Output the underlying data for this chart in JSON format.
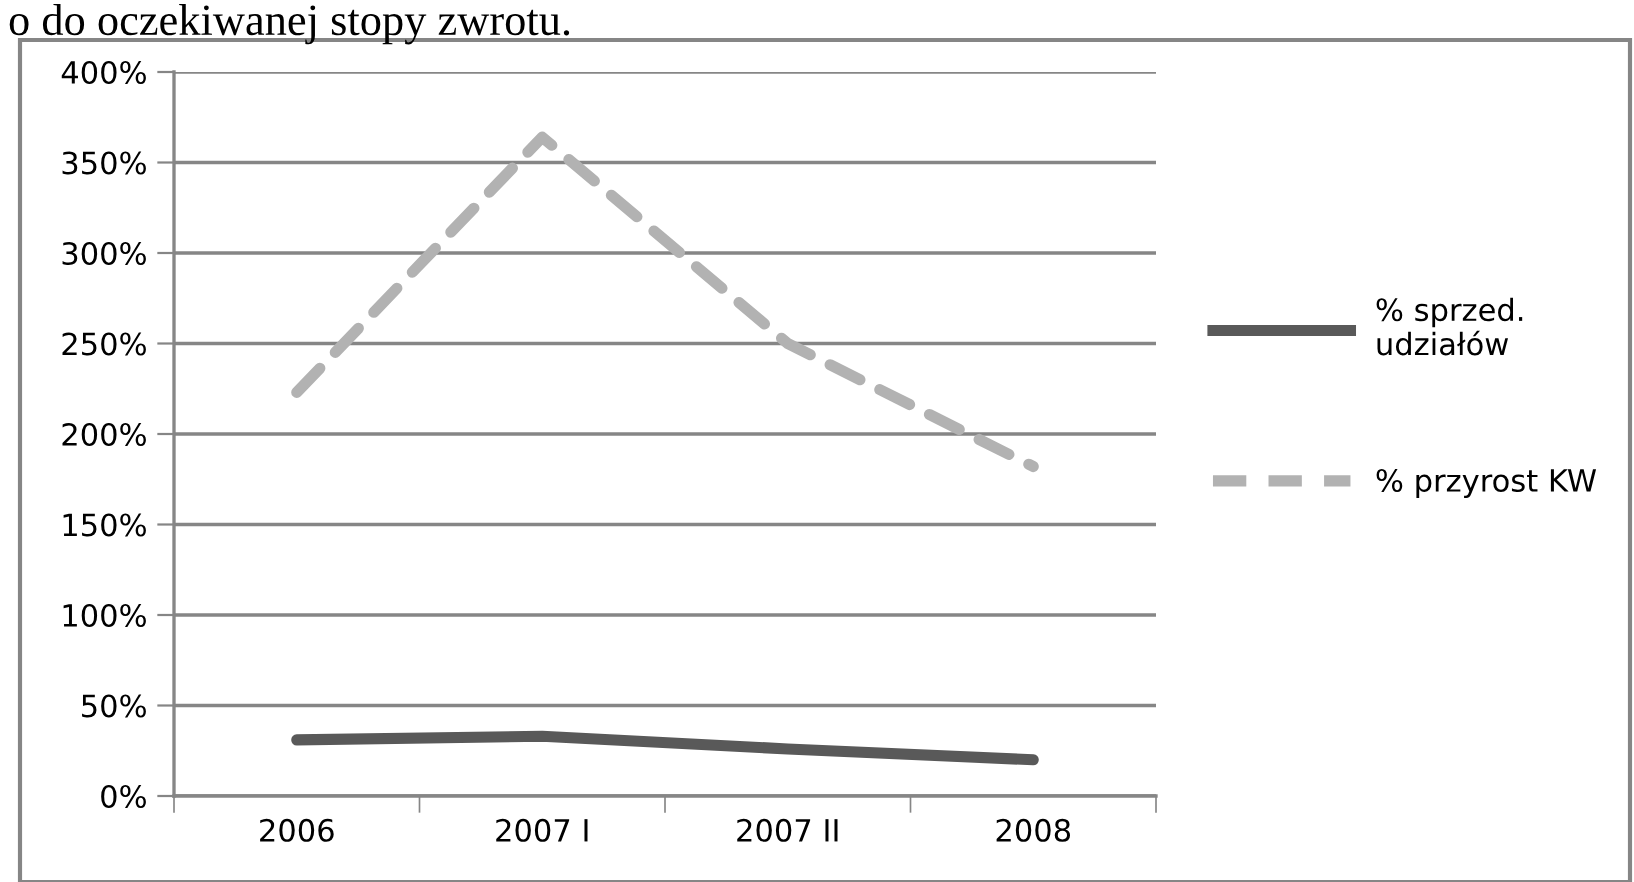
{
  "chart_data": {
    "type": "line",
    "categories": [
      "2006",
      "2007 I",
      "2007 II",
      "2008"
    ],
    "series": [
      {
        "name": "% sprzed. udziałów",
        "color": "#595959",
        "values": [
          31,
          33,
          26,
          20
        ],
        "line_style": "solid"
      },
      {
        "name": "% przyrost KW",
        "color": "#b2b2b2",
        "values": [
          223,
          364,
          250,
          182
        ],
        "line_style": "dashed"
      }
    ],
    "ylim": [
      0,
      400
    ],
    "yticks": [
      {
        "value": 0,
        "label": "0%"
      },
      {
        "value": 50,
        "label": "50%"
      },
      {
        "value": 100,
        "label": "100%"
      },
      {
        "value": 150,
        "label": "150%"
      },
      {
        "value": 200,
        "label": "200%"
      },
      {
        "value": 250,
        "label": "250%"
      },
      {
        "value": 300,
        "label": "300%"
      },
      {
        "value": 350,
        "label": "350%"
      },
      {
        "value": 400,
        "label": "400%"
      }
    ],
    "grid": "y",
    "legend": "right",
    "annotations": [
      "o do oczekiwanej stopy zwrotu."
    ]
  }
}
